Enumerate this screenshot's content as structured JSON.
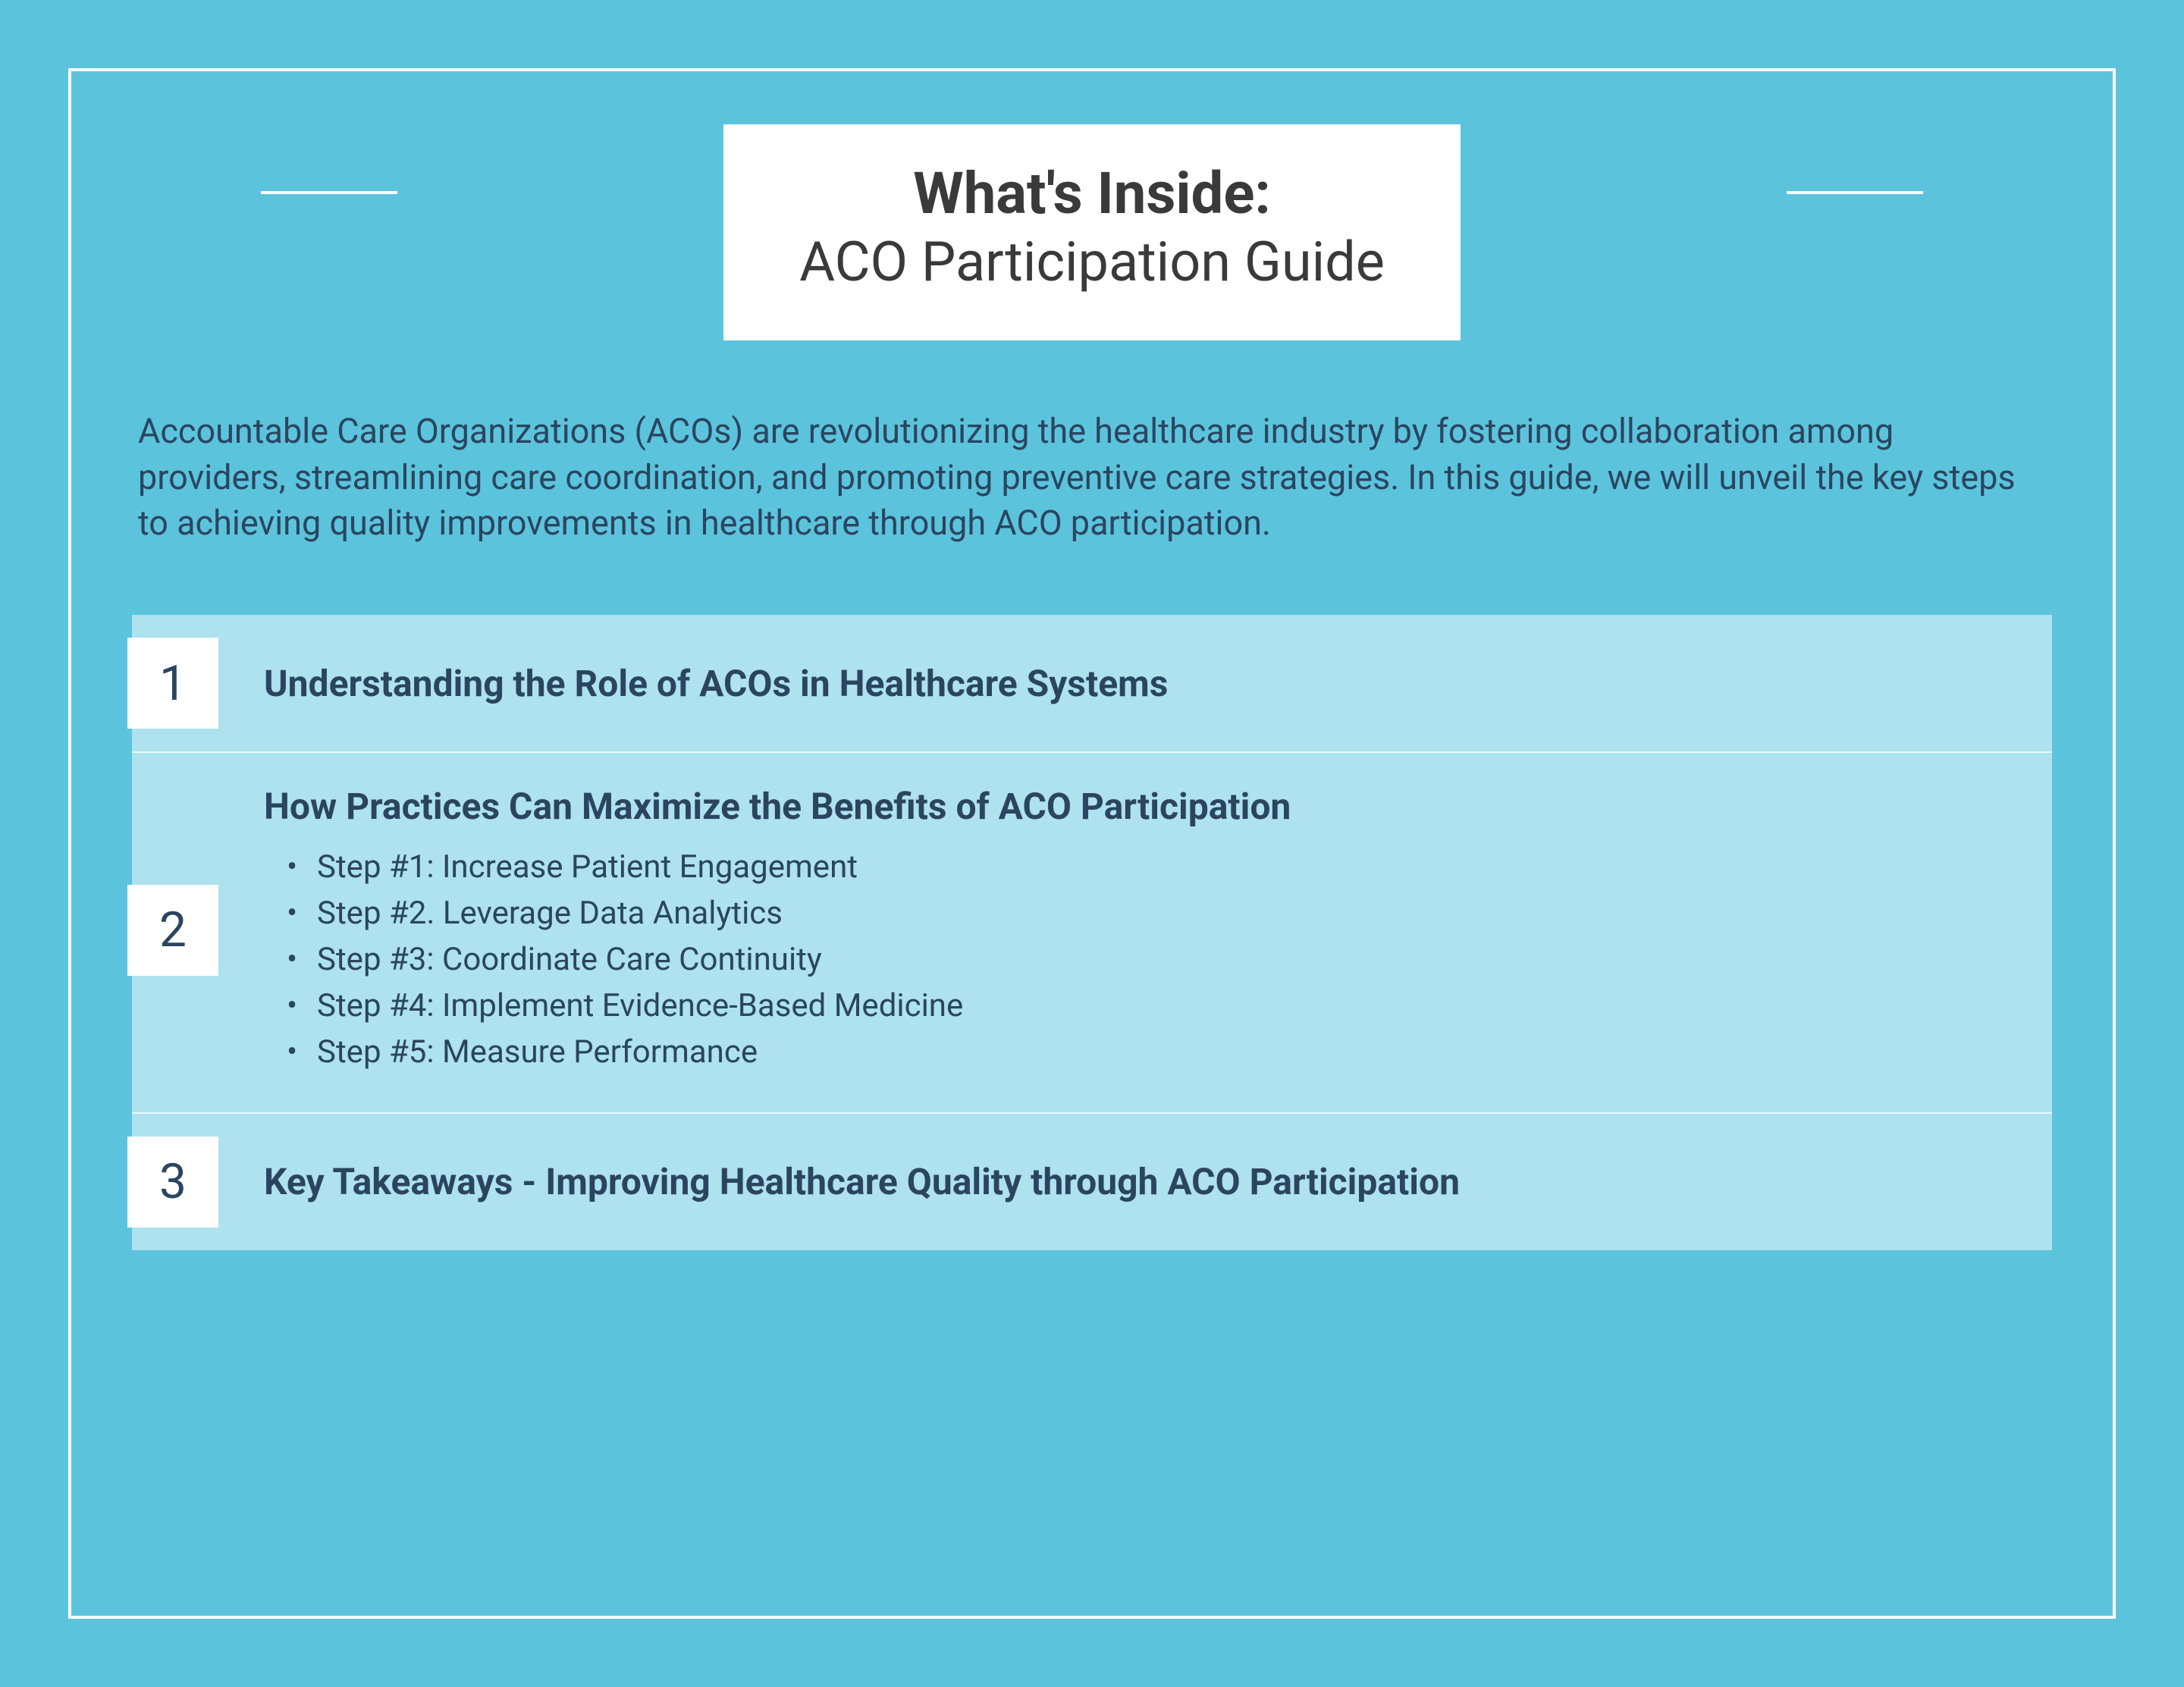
{
  "colors": {
    "page_bg": "#5BC4DC",
    "frame_border": "#ffffff",
    "title_box_bg": "#ffffff",
    "title_text": "#3a3a3a",
    "body_text": "#2B4560",
    "sections_bg": "#ADE2EE",
    "num_box_bg": "#ffffff",
    "divider": "rgba(255,255,255,0.75)"
  },
  "title": {
    "heading": "What's Inside:",
    "sub": "ACO Participation Guide"
  },
  "intro": "Accountable Care Organizations (ACOs) are revolutionizing the healthcare industry by fostering collaboration among providers, streamlining care coordination, and promoting preventive care strategies. In this guide, we will unveil the key steps to achieving quality improvements in healthcare through ACO participation.",
  "sections": [
    {
      "num": "1",
      "title": "Understanding the Role of ACOs in Healthcare Systems",
      "steps": []
    },
    {
      "num": "2",
      "title": "How Practices Can Maximize the Benefits of ACO Participation",
      "steps": [
        "Step #1: Increase Patient Engagement",
        "Step #2. Leverage Data Analytics",
        "Step #3: Coordinate Care Continuity",
        "Step #4: Implement Evidence-Based Medicine",
        "Step #5: Measure Performance"
      ]
    },
    {
      "num": "3",
      "title": "Key Takeaways - Improving Healthcare Quality through ACO Participation",
      "steps": []
    }
  ]
}
